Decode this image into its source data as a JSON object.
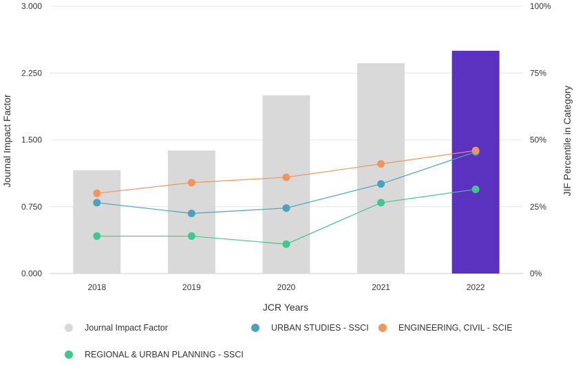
{
  "chart_data": {
    "type": "bar",
    "categories": [
      "2018",
      "2019",
      "2020",
      "2021",
      "2022"
    ],
    "bar_series": {
      "name": "Journal Impact Factor",
      "values": [
        1.16,
        1.38,
        2.0,
        2.36,
        2.5
      ],
      "color": "#d9d9d9",
      "highlight_color": "#5b31bf",
      "highlight_index": 4
    },
    "line_series": [
      {
        "name": "URBAN STUDIES - SSCI",
        "values": [
          26.5,
          22.5,
          24.5,
          33.5,
          45.5
        ],
        "color": "#4ba3bb"
      },
      {
        "name": "ENGINEERING, CIVIL - SCIE",
        "values": [
          30,
          34,
          36,
          41,
          46
        ],
        "color": "#f2955d"
      },
      {
        "name": "REGIONAL & URBAN PLANNING - SSCI",
        "values": [
          14,
          14,
          11,
          26.5,
          31.5
        ],
        "color": "#3ec98a"
      }
    ],
    "xlabel": "JCR Years",
    "ylabel_left": "Journal Impact Factor",
    "ylabel_right": "JIF Percentile in Category",
    "ylim_left": [
      0,
      3
    ],
    "ylim_right": [
      0,
      100
    ],
    "left_ticks": [
      "0.000",
      "0.750",
      "1.500",
      "2.250",
      "3.000"
    ],
    "left_tick_values": [
      0,
      0.75,
      1.5,
      2.25,
      3
    ],
    "right_ticks": [
      "0%",
      "25%",
      "50%",
      "75%",
      "100%"
    ],
    "right_tick_values": [
      0,
      25,
      50,
      75,
      100
    ],
    "grid": true,
    "legend_position": "bottom"
  }
}
